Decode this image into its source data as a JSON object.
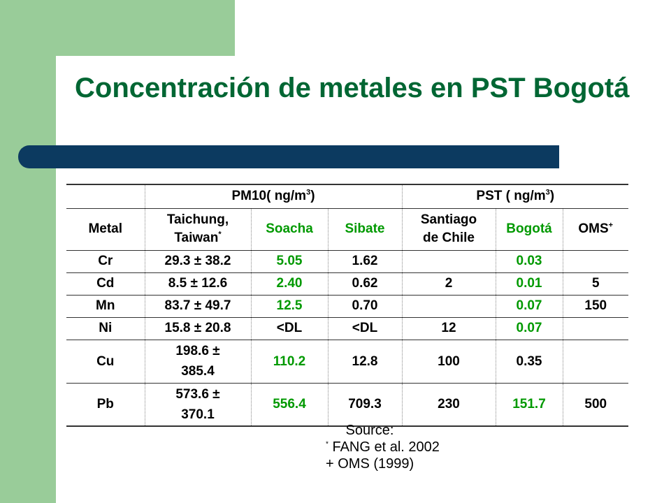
{
  "slide": {
    "title": "Concentración de metales en PST Bogotá"
  },
  "table": {
    "group_pm10": "PM10( ng/m",
    "group_pm10_sup": "3",
    "group_pm10_end": ")",
    "group_pst": "PST ( ng/m",
    "group_pst_sup": "3",
    "group_pst_end": ")",
    "col_metal": "Metal",
    "col_taichung_1": "Taichung,",
    "col_taichung_2": "Taiwan",
    "col_taichung_mark": "*",
    "col_soacha": "Soacha",
    "col_sibate": "Sibate",
    "col_santiago_1": "Santiago",
    "col_santiago_2": "de Chile",
    "col_bogota": "Bogotá",
    "col_oms": "OMS",
    "col_oms_mark": "+",
    "rows": [
      {
        "metal": "Cr",
        "taichung_1": "29.3 ± 38.2",
        "taichung_2": "",
        "soacha": "5.05",
        "sibate": "1.62",
        "santiago": "",
        "bogota": "0.03",
        "oms": ""
      },
      {
        "metal": "Cd",
        "taichung_1": "8.5 ± 12.6",
        "taichung_2": "",
        "soacha": "2.40",
        "sibate": "0.62",
        "santiago": "2",
        "bogota": "0.01",
        "oms": "5"
      },
      {
        "metal": "Mn",
        "taichung_1": "83.7 ± 49.7",
        "taichung_2": "",
        "soacha": "12.5",
        "sibate": "0.70",
        "santiago": "",
        "bogota": "0.07",
        "oms": "150"
      },
      {
        "metal": "Ni",
        "taichung_1": "15.8 ± 20.8",
        "taichung_2": "",
        "soacha": "<DL",
        "sibate": "<DL",
        "santiago": "12",
        "bogota": "0.07",
        "oms": ""
      },
      {
        "metal": "Cu",
        "taichung_1": "198.6 ±",
        "taichung_2": "385.4",
        "soacha": "110.2",
        "sibate": "12.8",
        "santiago": "100",
        "bogota": "0.35",
        "oms": ""
      },
      {
        "metal": "Pb",
        "taichung_1": "573.6 ±",
        "taichung_2": "370.1",
        "soacha": "556.4",
        "sibate": "709.3",
        "santiago": "230",
        "bogota": "151.7",
        "oms": "500"
      }
    ]
  },
  "source": {
    "heading": "Source:",
    "ref1_mark": "*",
    "ref1_text": "FANG et al. 2002",
    "ref2_mark": "+",
    "ref2_text": "OMS (1999)"
  },
  "colors": {
    "title": "#006633",
    "green_band": "#99cc99",
    "title_bar": "#0c3a60",
    "green_values": "#009900"
  }
}
